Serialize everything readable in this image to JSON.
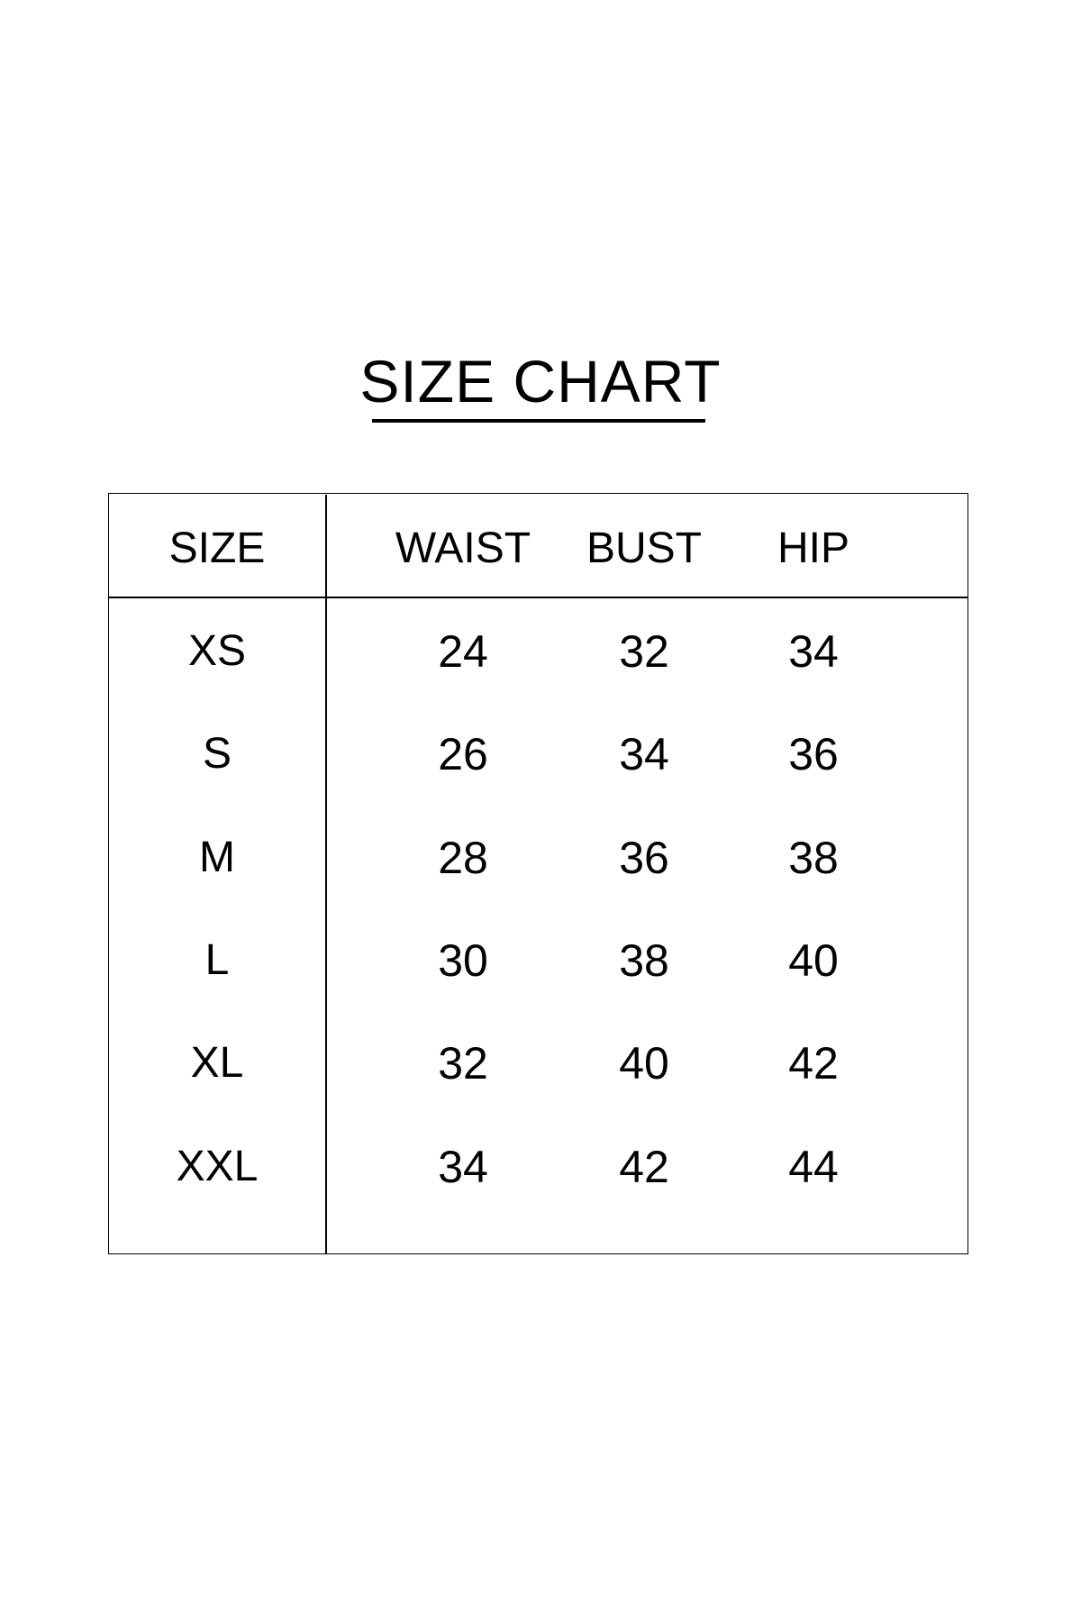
{
  "title": "SIZE CHART",
  "headers": [
    "SIZE",
    "WAIST",
    "BUST",
    "HIP"
  ],
  "rows": [
    [
      "XS",
      "24",
      "32",
      "34"
    ],
    [
      "S",
      "26",
      "34",
      "36"
    ],
    [
      "M",
      "28",
      "36",
      "38"
    ],
    [
      "L",
      "30",
      "38",
      "40"
    ],
    [
      "XL",
      "32",
      "40",
      "42"
    ],
    [
      "XXL",
      "34",
      "42",
      "44"
    ]
  ]
}
